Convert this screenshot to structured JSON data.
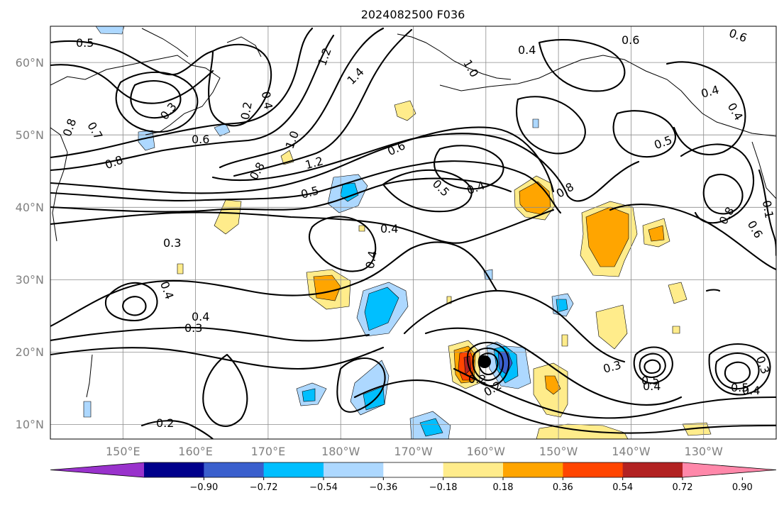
{
  "title": "2024082500 F036",
  "map": {
    "lon_range_east": [
      140,
      240
    ],
    "lat_range": [
      8,
      65
    ],
    "lat_ticks": [
      "10°N",
      "20°N",
      "30°N",
      "40°N",
      "50°N",
      "60°N"
    ],
    "lon_ticks": [
      "150°E",
      "160°E",
      "170°E",
      "180°W",
      "170°W",
      "160°W",
      "150°W",
      "140°W",
      "130°W"
    ],
    "storm_marker": {
      "lon_east": 201,
      "lat": 18.5,
      "label": "storm-center"
    }
  },
  "colorbar": {
    "ticks": [
      "−0.90",
      "−0.72",
      "−0.54",
      "−0.36",
      "−0.18",
      "0.18",
      "0.36",
      "0.54",
      "0.72",
      "0.90"
    ],
    "under_color": "#9932cc",
    "over_color": "#ff88aa",
    "colors": [
      "#9932cc",
      "#00008b",
      "#3a5fcd",
      "#00bfff",
      "#add8ff",
      "#ffffff",
      "#ffec8b",
      "#ffa500",
      "#ff4500",
      "#b22222",
      "#ff88aa"
    ]
  },
  "contour_labels": [
    "0.5",
    "0.8",
    "0.7",
    "0.8",
    "0.6",
    "0.3",
    "0.2",
    "0.4",
    "1.0",
    "1.2",
    "1.2",
    "1.4",
    "1.0",
    "0.8",
    "0.6",
    "0.5",
    "0.5",
    "0.4",
    "0.8",
    "0.4",
    "0.6",
    "0.5",
    "0.4",
    "0.4",
    "0.8",
    "0.6",
    "0.4",
    "0.3",
    "0.4",
    "0.4",
    "0.3",
    "0.4",
    "0.3",
    "0.2",
    "0.2",
    "0.3",
    "0.2",
    "0.4",
    "0.3",
    "0.5",
    "0.4",
    "0.6",
    "0.3",
    "0.5",
    "0.1"
  ]
}
